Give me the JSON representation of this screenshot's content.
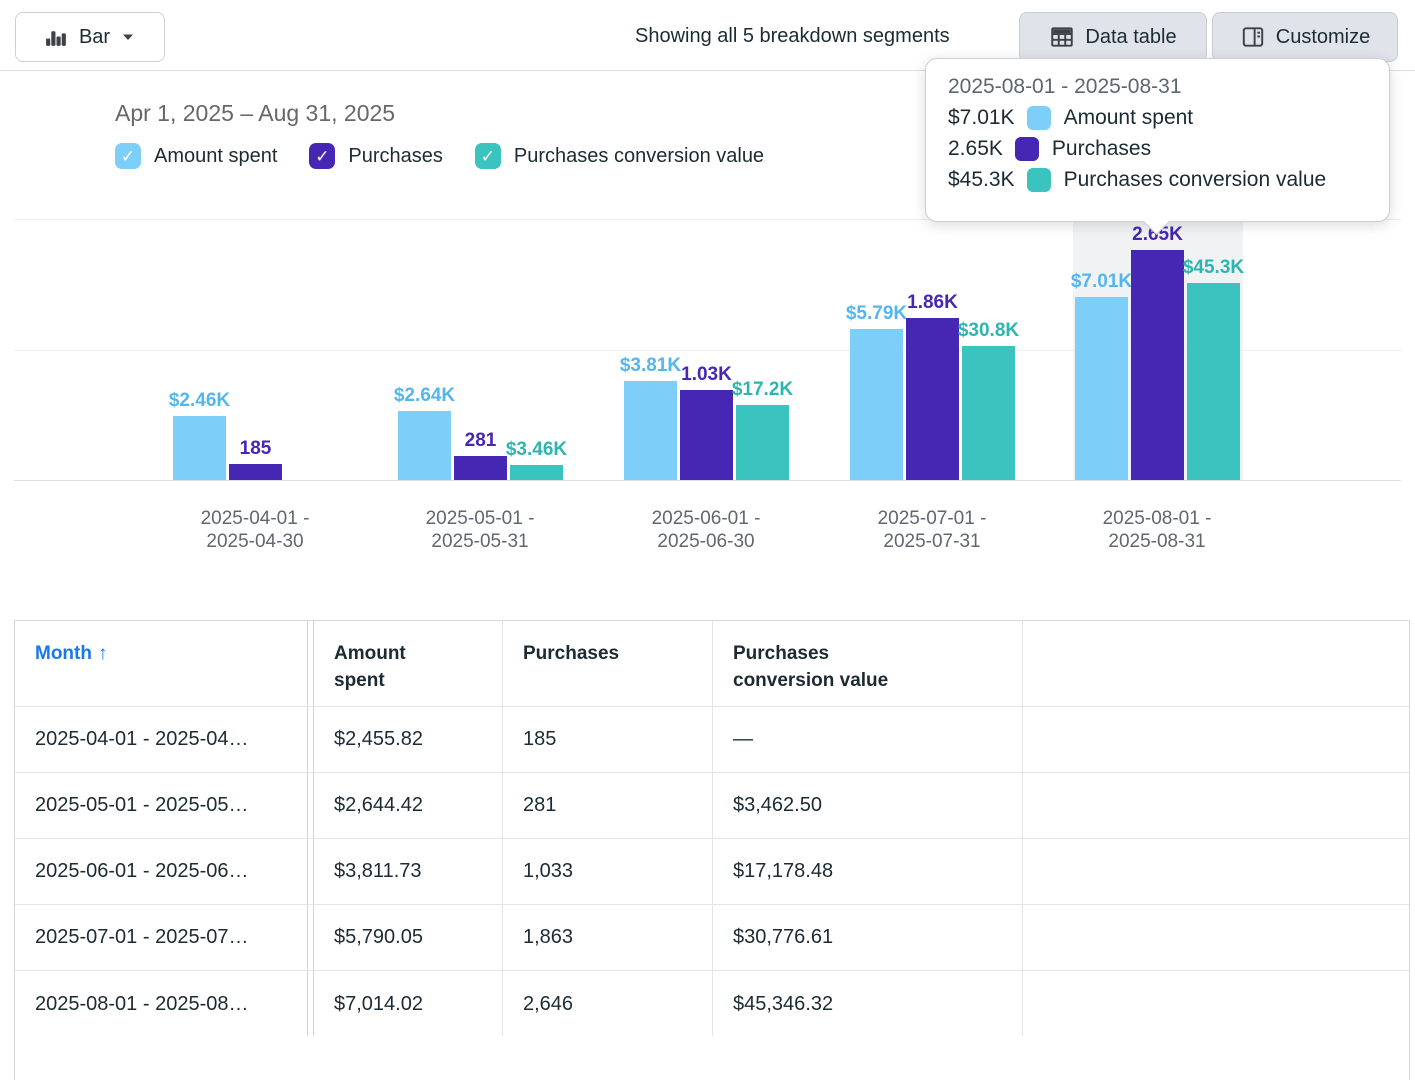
{
  "toolbar": {
    "chart_type_label": "Bar",
    "breakdown_text": "Showing all 5 breakdown segments",
    "data_table_label": "Data table",
    "customize_label": "Customize"
  },
  "colors": {
    "accent_blue": "#1877F2",
    "text_dark": "#1C2B33",
    "text_gray": "#606770",
    "amount_spent": "#7DCEF9",
    "purchases": "#4527B3",
    "conversion_value": "#3BC4BF"
  },
  "chart": {
    "date_range": "Apr 1, 2025 – Aug 31, 2025",
    "legend": [
      {
        "label": "Amount spent",
        "color": "#7DCEF9",
        "checked": true
      },
      {
        "label": "Purchases",
        "color": "#4527B3",
        "checked": true
      },
      {
        "label": "Purchases conversion value",
        "color": "#3BC4BF",
        "checked": true
      }
    ]
  },
  "tooltip": {
    "title": "2025-08-01 - 2025-08-31",
    "rows": [
      {
        "value": "$7.01K",
        "label": "Amount spent",
        "color": "#7DCEF9"
      },
      {
        "value": "2.65K",
        "label": "Purchases",
        "color": "#4527B3"
      },
      {
        "value": "$45.3K",
        "label": "Purchases conversion value",
        "color": "#3BC4BF"
      }
    ]
  },
  "chart_data": {
    "type": "bar",
    "title": "Apr 1, 2025 – Aug 31, 2025",
    "categories": [
      "2025-04-01 -\n2025-04-30",
      "2025-05-01 -\n2025-05-31",
      "2025-06-01 -\n2025-06-30",
      "2025-07-01 -\n2025-07-31",
      "2025-08-01 -\n2025-08-31"
    ],
    "series": [
      {
        "name": "Amount spent",
        "color": "#7DCEF9",
        "label_color": "#54B6EE",
        "values": [
          2455.82,
          2644.42,
          3811.73,
          5790.05,
          7014.02
        ],
        "labels": [
          "$2.46K",
          "$2.64K",
          "$3.81K",
          "$5.79K",
          "$7.01K"
        ]
      },
      {
        "name": "Purchases",
        "color": "#4527B3",
        "label_color": "#4527B3",
        "values": [
          185,
          281,
          1033,
          1863,
          2646
        ],
        "labels": [
          "185",
          "281",
          "1.03K",
          "1.86K",
          "2.65K"
        ]
      },
      {
        "name": "Purchases conversion value",
        "color": "#3BC4BF",
        "label_color": "#2DB6AF",
        "values": [
          null,
          3462.5,
          17178.48,
          30776.61,
          45346.32
        ],
        "labels": [
          "",
          "$3.46K",
          "$17.2K",
          "$30.8K",
          "$45.3K"
        ]
      }
    ],
    "highlighted_category_index": 4,
    "grid": true,
    "legend_position": "top",
    "xlabel": "",
    "ylabel": ""
  },
  "table": {
    "headers": [
      "Month",
      "Amount spent",
      "Purchases",
      "Purchases conversion value",
      ""
    ],
    "sort_column": "Month",
    "sort_direction": "asc",
    "sort_arrow": "↑",
    "rows": [
      [
        "2025-04-01 - 2025-04…",
        "$2,455.82",
        "185",
        "—"
      ],
      [
        "2025-05-01 - 2025-05…",
        "$2,644.42",
        "281",
        "$3,462.50"
      ],
      [
        "2025-06-01 - 2025-06…",
        "$3,811.73",
        "1,033",
        "$17,178.48"
      ],
      [
        "2025-07-01 - 2025-07…",
        "$5,790.05",
        "1,863",
        "$30,776.61"
      ],
      [
        "2025-08-01 - 2025-08…",
        "$7,014.02",
        "2,646",
        "$45,346.32"
      ]
    ]
  }
}
